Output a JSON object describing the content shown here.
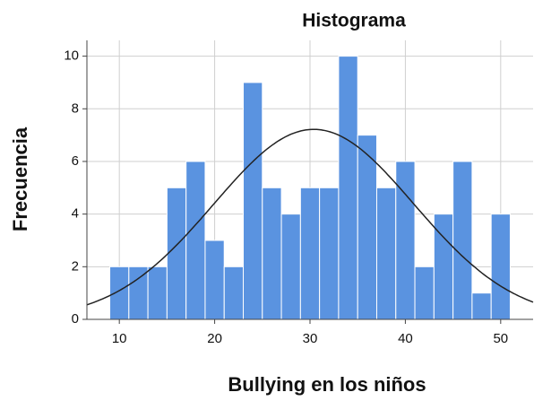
{
  "chart_data": {
    "type": "histogram",
    "title": "Histograma",
    "xlabel": "Bullying en los niños",
    "ylabel": "Frecuencia",
    "bins": [
      9,
      11,
      13,
      15,
      17,
      19,
      21,
      23,
      25,
      27,
      29,
      31,
      33,
      35,
      37,
      39,
      41,
      43,
      45,
      47,
      49,
      51
    ],
    "values": [
      2,
      2,
      2,
      5,
      6,
      3,
      2,
      9,
      5,
      4,
      5,
      5,
      10,
      7,
      5,
      6,
      2,
      4,
      6,
      1,
      4
    ],
    "color": "#5a93e0",
    "curve": {
      "mean": 30.4,
      "std": 10.5,
      "color": "#222222"
    },
    "xlim": [
      6.6,
      53.4
    ],
    "ylim": [
      0,
      10.6
    ],
    "xticks": [
      10,
      20,
      30,
      40,
      50
    ],
    "yticks": [
      0,
      2,
      4,
      6,
      8,
      10
    ],
    "grid": true
  }
}
